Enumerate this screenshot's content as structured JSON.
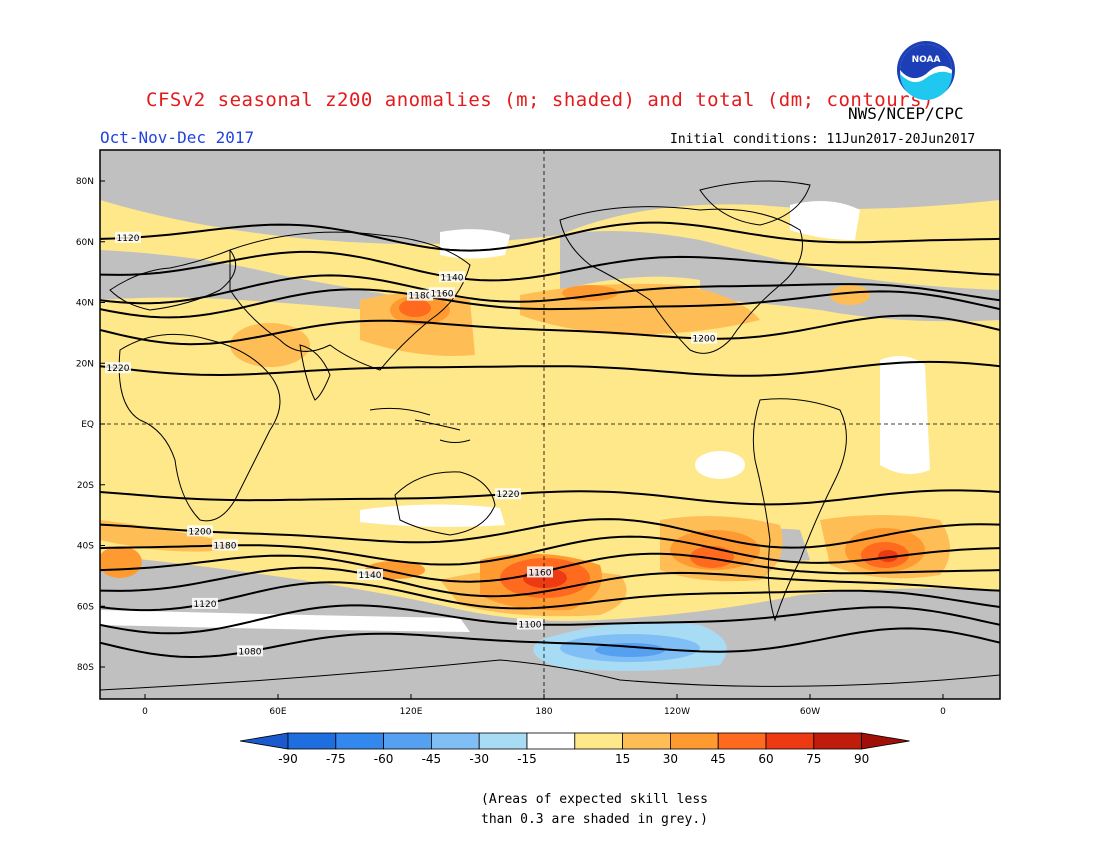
{
  "header": {
    "title": "CFSv2 seasonal z200 anomalies (m; shaded) and total (dm; contours)",
    "agency": "NWS/NCEP/CPC",
    "period": "Oct-Nov-Dec 2017",
    "initial_conditions": "Initial conditions: 11Jun2017-20Jun2017",
    "logo_text": "NOAA"
  },
  "map": {
    "lat_ticks": [
      "80N",
      "60N",
      "40N",
      "20N",
      "EQ",
      "20S",
      "40S",
      "60S",
      "80S"
    ],
    "lon_ticks": [
      "0",
      "60E",
      "120E",
      "180",
      "120W",
      "60W",
      "0"
    ],
    "colors": {
      "land_outline": "#000000",
      "grey_low_skill": "#c0c0c0",
      "map_background": "#ffe88a"
    },
    "contours": [
      {
        "label": "1080",
        "lat": -72
      },
      {
        "label": "1100",
        "lat": -64
      },
      {
        "label": "1120",
        "lat": -57
      },
      {
        "label": "1140",
        "lat": -52
      },
      {
        "label": "1160",
        "lat": -47
      },
      {
        "label": "1180",
        "lat": -42
      },
      {
        "label": "1200",
        "lat": -36
      },
      {
        "label": "1220",
        "lat": -24
      },
      {
        "label": "1220",
        "lat": 18
      },
      {
        "label": "1200",
        "lat": 31
      },
      {
        "label": "1180",
        "lat": 40
      },
      {
        "label": "1160",
        "lat": 44
      },
      {
        "label": "1140",
        "lat": 52
      },
      {
        "label": "1120",
        "lat": 62
      }
    ]
  },
  "colorbar": {
    "values": [
      "-90",
      "-75",
      "-60",
      "-45",
      "-30",
      "-15",
      "15",
      "30",
      "45",
      "60",
      "75",
      "90"
    ],
    "colors": [
      "#1f6ee0",
      "#3388ee",
      "#55a0f0",
      "#80bff5",
      "#a8dcf5",
      "#ffffff",
      "#ffe88a",
      "#ffbe55",
      "#ff9a30",
      "#ff6a1f",
      "#ee3a12",
      "#c01c0c"
    ],
    "neg_end_color": "#1a5acc",
    "pos_end_color": "#a01008"
  },
  "footnote": {
    "line1": "(Areas of expected skill less",
    "line2": "than 0.3 are shaded in grey.)"
  }
}
